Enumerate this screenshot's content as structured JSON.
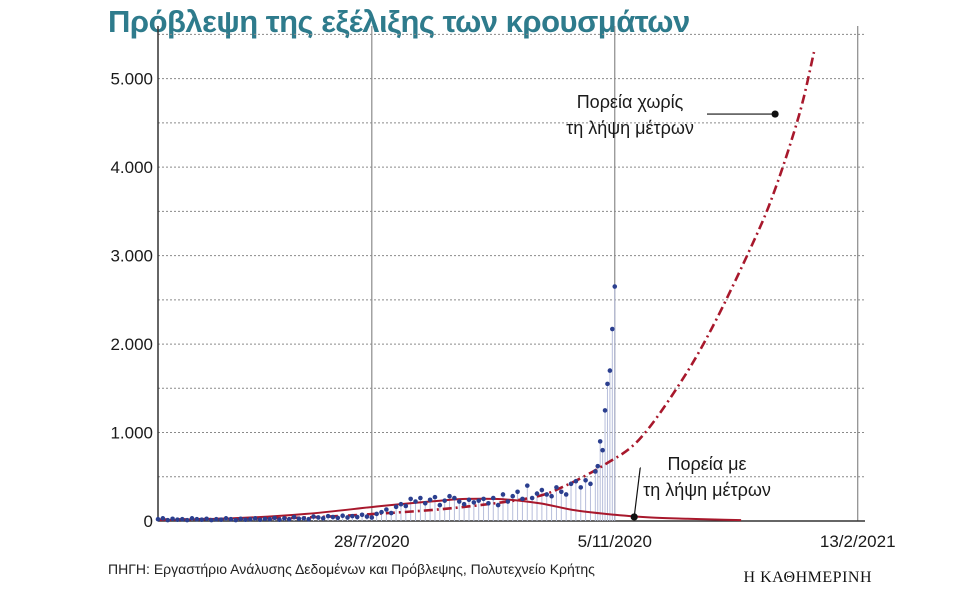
{
  "title": "Πρόβλεψη της εξέλιξης των κρουσμάτων",
  "source": "ΠΗΓΗ: Εργαστήριο Ανάλυσης Δεδομένων και Πρόβλεψης, Πολυτεχνείο Κρήτης",
  "brand": "Η ΚΑΘΗΜΕΡΙΝΗ",
  "chart_data": {
    "type": "scatter",
    "title": "Πρόβλεψη της εξέλιξης των κρουσμάτων",
    "xlabel": "",
    "ylabel": "",
    "x_range": [
      "2020-05-01",
      "2021-02-16"
    ],
    "ylim": [
      0,
      5550
    ],
    "y_ticks": [
      0,
      1000,
      2000,
      3000,
      4000,
      5000
    ],
    "y_tick_labels": [
      "0",
      "1.000",
      "2.000",
      "3.000",
      "4.000",
      "5.000"
    ],
    "x_ticks": [
      "2020-07-28",
      "2020-11-05",
      "2021-02-13"
    ],
    "x_tick_labels": [
      "28/7/2020",
      "5/11/2020",
      "13/2/2021"
    ],
    "grid": true,
    "colors": {
      "observed": "#2b3f8f",
      "stems": "#b7bedb",
      "forecast": "#a8182c",
      "title": "#2e7b8c",
      "grid": "#8a8a8a"
    },
    "observed": {
      "x": [
        "2020-05-01",
        "2020-05-03",
        "2020-05-05",
        "2020-05-07",
        "2020-05-09",
        "2020-05-11",
        "2020-05-13",
        "2020-05-15",
        "2020-05-17",
        "2020-05-19",
        "2020-05-21",
        "2020-05-23",
        "2020-05-25",
        "2020-05-27",
        "2020-05-29",
        "2020-05-31",
        "2020-06-02",
        "2020-06-04",
        "2020-06-06",
        "2020-06-08",
        "2020-06-10",
        "2020-06-12",
        "2020-06-14",
        "2020-06-16",
        "2020-06-18",
        "2020-06-20",
        "2020-06-22",
        "2020-06-24",
        "2020-06-26",
        "2020-06-28",
        "2020-06-30",
        "2020-07-02",
        "2020-07-04",
        "2020-07-06",
        "2020-07-08",
        "2020-07-10",
        "2020-07-12",
        "2020-07-14",
        "2020-07-16",
        "2020-07-18",
        "2020-07-20",
        "2020-07-22",
        "2020-07-24",
        "2020-07-26",
        "2020-07-28",
        "2020-07-30",
        "2020-08-01",
        "2020-08-03",
        "2020-08-05",
        "2020-08-07",
        "2020-08-09",
        "2020-08-11",
        "2020-08-13",
        "2020-08-15",
        "2020-08-17",
        "2020-08-19",
        "2020-08-21",
        "2020-08-23",
        "2020-08-25",
        "2020-08-27",
        "2020-08-29",
        "2020-08-31",
        "2020-09-02",
        "2020-09-04",
        "2020-09-06",
        "2020-09-08",
        "2020-09-10",
        "2020-09-12",
        "2020-09-14",
        "2020-09-16",
        "2020-09-18",
        "2020-09-20",
        "2020-09-22",
        "2020-09-24",
        "2020-09-26",
        "2020-09-28",
        "2020-09-30",
        "2020-10-02",
        "2020-10-04",
        "2020-10-06",
        "2020-10-08",
        "2020-10-10",
        "2020-10-12",
        "2020-10-14",
        "2020-10-16",
        "2020-10-18",
        "2020-10-20",
        "2020-10-22",
        "2020-10-24",
        "2020-10-26",
        "2020-10-28",
        "2020-10-29",
        "2020-10-30",
        "2020-10-31",
        "2020-11-01",
        "2020-11-02",
        "2020-11-03",
        "2020-11-04",
        "2020-11-05"
      ],
      "y": [
        20,
        30,
        10,
        25,
        15,
        20,
        10,
        30,
        20,
        15,
        25,
        10,
        20,
        15,
        30,
        20,
        10,
        25,
        15,
        20,
        30,
        15,
        25,
        20,
        35,
        15,
        30,
        20,
        45,
        25,
        30,
        20,
        50,
        40,
        30,
        55,
        45,
        35,
        60,
        40,
        55,
        45,
        70,
        50,
        40,
        80,
        100,
        130,
        90,
        160,
        190,
        170,
        250,
        220,
        260,
        200,
        240,
        270,
        180,
        230,
        280,
        260,
        220,
        190,
        240,
        210,
        230,
        250,
        200,
        260,
        180,
        300,
        220,
        280,
        330,
        250,
        400,
        260,
        310,
        350,
        300,
        280,
        380,
        330,
        300,
        420,
        450,
        380,
        460,
        420,
        560,
        620,
        900,
        800,
        1250,
        1550,
        1700,
        2170,
        2650
      ]
    },
    "forecast_without_measures": {
      "name": "Πορεία χωρίς τη λήψη μέτρων",
      "style": "dash-dot",
      "x": [
        "2020-05-01",
        "2020-06-01",
        "2020-07-01",
        "2020-08-01",
        "2020-09-01",
        "2020-10-01",
        "2020-10-15",
        "2020-11-01",
        "2020-11-15",
        "2020-12-01",
        "2020-12-15",
        "2021-01-01",
        "2021-01-10",
        "2021-01-20",
        "2021-01-26"
      ],
      "y": [
        15,
        25,
        40,
        85,
        150,
        260,
        390,
        640,
        920,
        1520,
        2180,
        3150,
        3750,
        4600,
        5300
      ]
    },
    "forecast_with_measures": {
      "name": "Πορεία με τη λήψη μέτρων",
      "style": "solid",
      "x": [
        "2020-05-01",
        "2020-06-01",
        "2020-07-01",
        "2020-08-01",
        "2020-08-25",
        "2020-09-05",
        "2020-09-20",
        "2020-10-05",
        "2020-10-20",
        "2020-11-05",
        "2020-11-20",
        "2020-12-05",
        "2020-12-20",
        "2020-12-27"
      ],
      "y": [
        10,
        30,
        80,
        170,
        230,
        250,
        245,
        200,
        120,
        70,
        40,
        25,
        15,
        10
      ]
    },
    "annotations": [
      {
        "lines": [
          "Πορεία χωρίς",
          "τη λήψη μέτρων"
        ],
        "x": "2021-01-10",
        "y": 4600
      },
      {
        "lines": [
          "Πορεία με",
          "τη λήψη μέτρων"
        ],
        "x": "2020-11-13",
        "y": 80
      }
    ]
  }
}
